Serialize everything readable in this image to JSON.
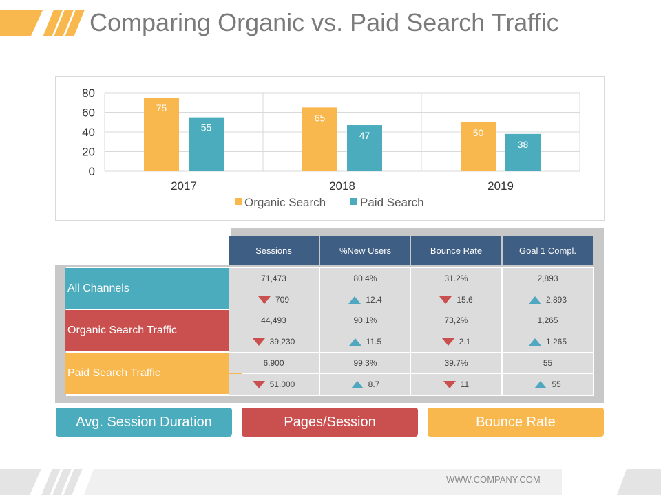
{
  "title": "Comparing Organic vs. Paid Search Traffic",
  "colors": {
    "organic": "#f8b84e",
    "paid": "#4bacbe",
    "header": "#3f5e84",
    "red": "#c9504f",
    "teal": "#4bacbe",
    "yellow": "#f8b84e"
  },
  "chart_data": {
    "type": "bar",
    "title": "",
    "xlabel": "",
    "ylabel": "",
    "categories": [
      "2017",
      "2018",
      "2019"
    ],
    "series": [
      {
        "name": "Organic Search",
        "values": [
          75,
          65,
          50
        ],
        "color": "#f8b84e"
      },
      {
        "name": "Paid Search",
        "values": [
          55,
          47,
          38
        ],
        "color": "#4bacbe"
      }
    ],
    "ylim": [
      0,
      80
    ],
    "yticks": [
      "0",
      "20",
      "40",
      "60",
      "80"
    ],
    "grid": true,
    "legend": "bottom"
  },
  "table": {
    "columns": [
      "Sessions",
      "%New Users",
      "Bounce Rate",
      "Goal 1 Compl."
    ],
    "rows": [
      {
        "label": "All Channels",
        "color": "#4bacbe",
        "values": [
          "71,473",
          "80.4%",
          "31.2%",
          "2,893"
        ],
        "changes": [
          "709",
          "12.4",
          "15.6",
          "2,893"
        ],
        "directions": [
          "down",
          "up",
          "down",
          "up"
        ]
      },
      {
        "label": "Organic Search Traffic",
        "color": "#c9504f",
        "values": [
          "44,493",
          "90,1%",
          "73,2%",
          "1,265"
        ],
        "changes": [
          "39,230",
          "11.5",
          "2.1",
          "1,265"
        ],
        "directions": [
          "down",
          "up",
          "down",
          "up"
        ]
      },
      {
        "label": "Paid Search Traffic",
        "color": "#f8b84e",
        "values": [
          "6,900",
          "99.3%",
          "39.7%",
          "55"
        ],
        "changes": [
          "51.000",
          "8.7",
          "11",
          "55"
        ],
        "directions": [
          "down",
          "up",
          "down",
          "up"
        ]
      }
    ]
  },
  "buttons": [
    {
      "label": "Avg. Session Duration",
      "color": "#4bacbe"
    },
    {
      "label": "Pages/Session",
      "color": "#c9504f"
    },
    {
      "label": "Bounce Rate",
      "color": "#f8b84e"
    }
  ],
  "footer": {
    "url": "WWW.COMPANY.COM"
  }
}
